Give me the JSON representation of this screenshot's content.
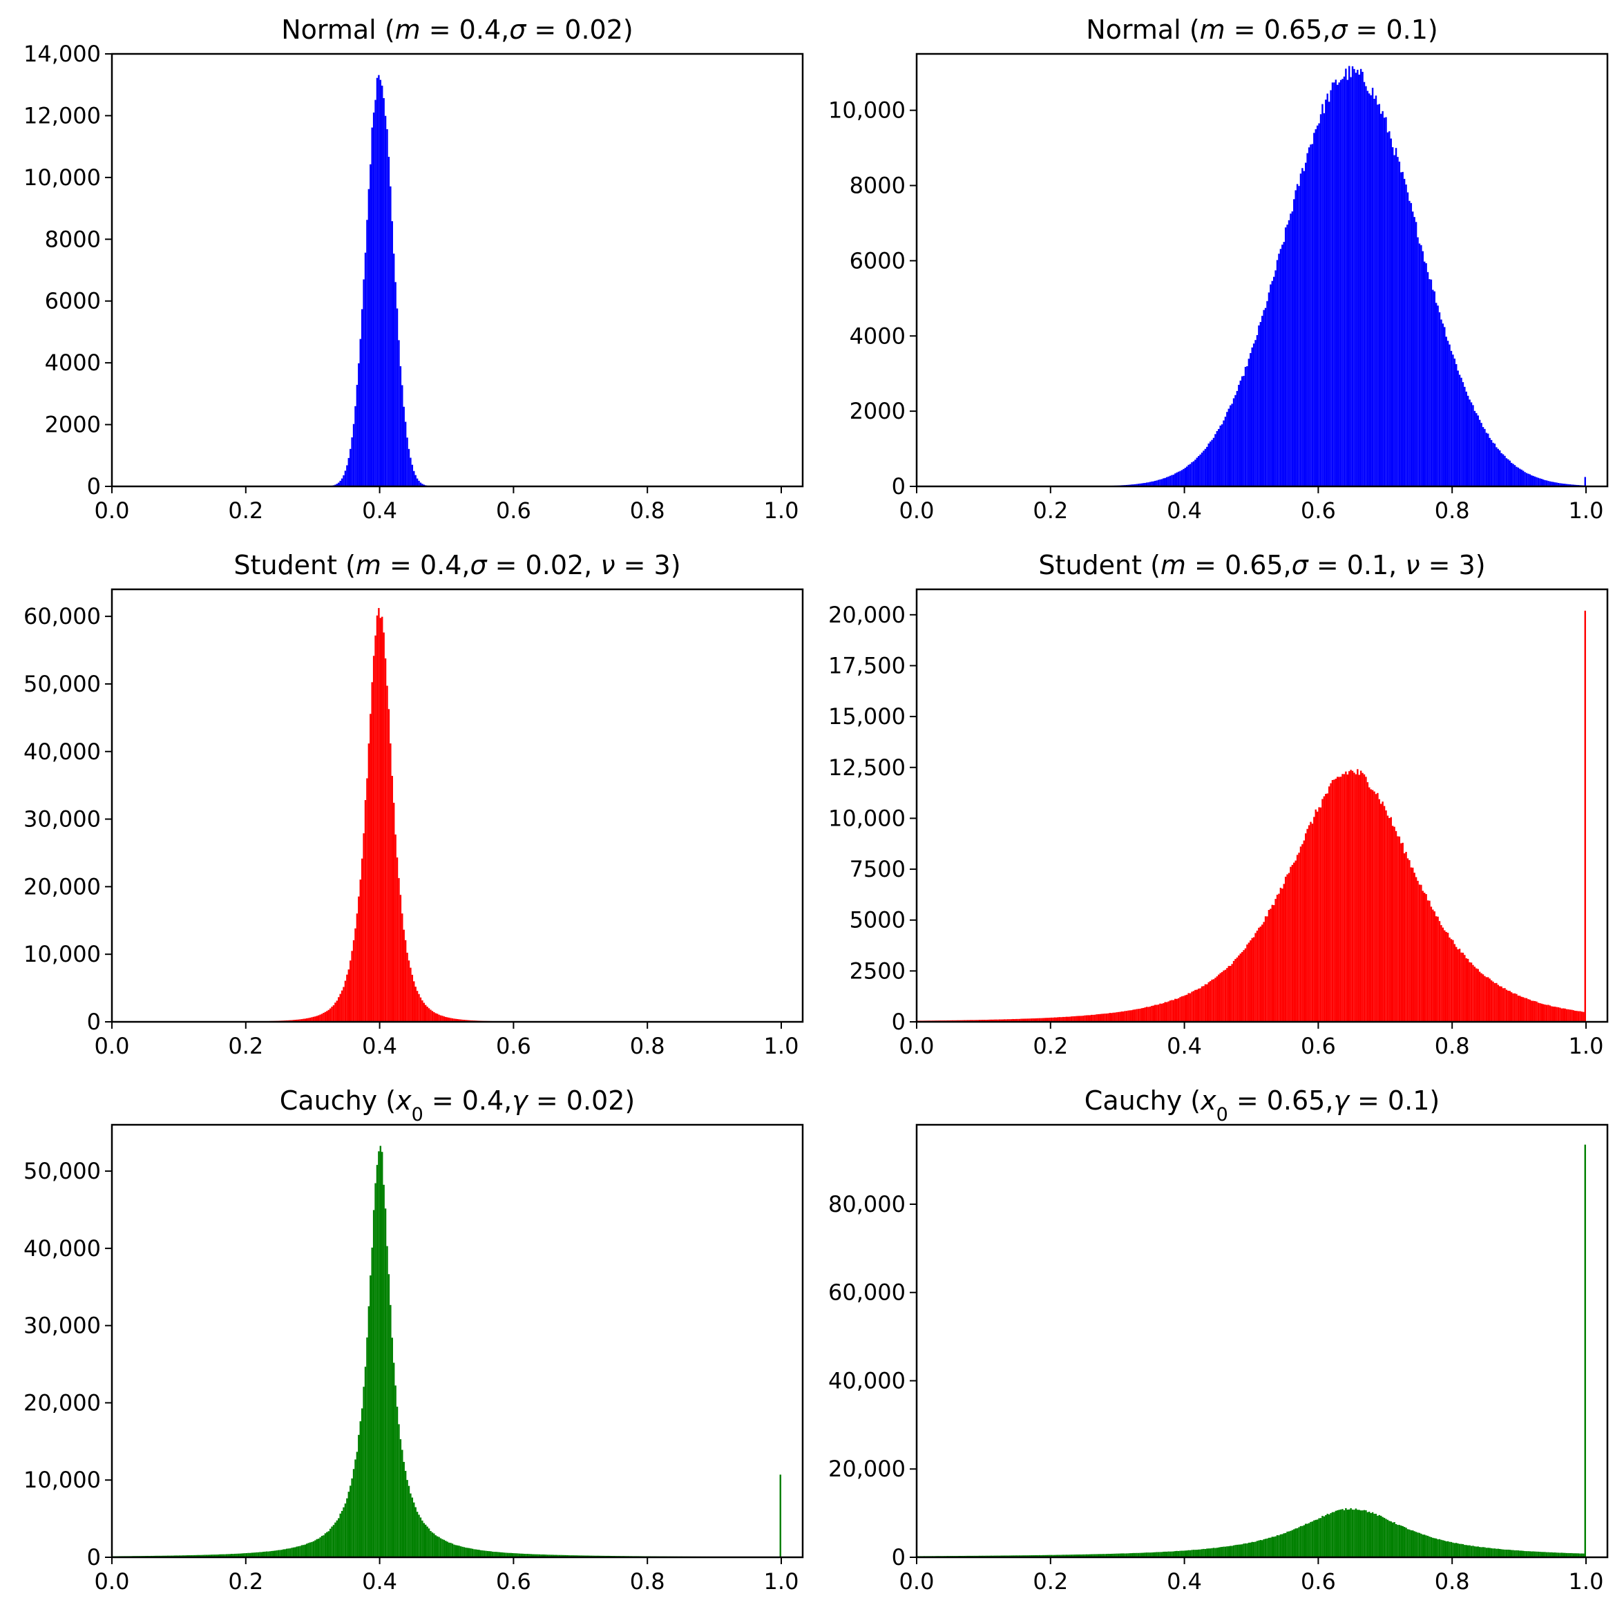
{
  "chart_data": [
    {
      "type": "bar",
      "title": "Normal (m = 0.4,σ = 0.02)",
      "title_parts": [
        {
          "t": "Normal ("
        },
        {
          "t": "m",
          "i": true
        },
        {
          "t": " = 0.4,"
        },
        {
          "t": "σ",
          "i": true
        },
        {
          "t": " = 0.02)"
        }
      ],
      "color": "#0000ff",
      "distribution": "normal",
      "params": {
        "loc": 0.4,
        "scale": 0.02
      },
      "peak": 13400,
      "bins": 400,
      "xlim": [
        0.0,
        1.0
      ],
      "ylim": [
        0,
        14000
      ],
      "xticks": [
        0.0,
        0.2,
        0.4,
        0.6,
        0.8,
        1.0
      ],
      "xtick_labels": [
        "0.0",
        "0.2",
        "0.4",
        "0.6",
        "0.8",
        "1.0"
      ],
      "yticks": [
        0,
        2000,
        4000,
        6000,
        8000,
        10000,
        12000,
        14000
      ],
      "ytick_labels": [
        "0",
        "2000",
        "4000",
        "6000",
        "8000",
        "10,000",
        "12,000",
        "14,000"
      ]
    },
    {
      "type": "bar",
      "title": "Normal (m = 0.65,σ = 0.1)",
      "title_parts": [
        {
          "t": "Normal ("
        },
        {
          "t": "m",
          "i": true
        },
        {
          "t": " = 0.65,"
        },
        {
          "t": "σ",
          "i": true
        },
        {
          "t": " = 0.1)"
        }
      ],
      "color": "#0000ff",
      "distribution": "normal",
      "params": {
        "loc": 0.65,
        "scale": 0.1
      },
      "peak": 11000,
      "end_spike": 250,
      "bins": 400,
      "xlim": [
        0.0,
        1.0
      ],
      "ylim": [
        0,
        11500
      ],
      "xticks": [
        0.0,
        0.2,
        0.4,
        0.6,
        0.8,
        1.0
      ],
      "xtick_labels": [
        "0.0",
        "0.2",
        "0.4",
        "0.6",
        "0.8",
        "1.0"
      ],
      "yticks": [
        0,
        2000,
        4000,
        6000,
        8000,
        10000
      ],
      "ytick_labels": [
        "0",
        "2000",
        "4000",
        "6000",
        "8000",
        "10,000"
      ]
    },
    {
      "type": "bar",
      "title": "Student (m = 0.4,σ = 0.02, ν = 3)",
      "title_parts": [
        {
          "t": "Student ("
        },
        {
          "t": "m",
          "i": true
        },
        {
          "t": " = 0.4,"
        },
        {
          "t": "σ",
          "i": true
        },
        {
          "t": " = 0.02, "
        },
        {
          "t": "ν",
          "i": true
        },
        {
          "t": " = 3)"
        }
      ],
      "color": "#ff0000",
      "distribution": "student",
      "params": {
        "loc": 0.4,
        "scale": 0.02,
        "df": 3
      },
      "peak": 61000,
      "bins": 400,
      "xlim": [
        0.0,
        1.0
      ],
      "ylim": [
        0,
        64000
      ],
      "xticks": [
        0.0,
        0.2,
        0.4,
        0.6,
        0.8,
        1.0
      ],
      "xtick_labels": [
        "0.0",
        "0.2",
        "0.4",
        "0.6",
        "0.8",
        "1.0"
      ],
      "yticks": [
        0,
        10000,
        20000,
        30000,
        40000,
        50000,
        60000
      ],
      "ytick_labels": [
        "0",
        "10,000",
        "20,000",
        "30,000",
        "40,000",
        "50,000",
        "60,000"
      ]
    },
    {
      "type": "bar",
      "title": "Student (m = 0.65,σ = 0.1, ν = 3)",
      "title_parts": [
        {
          "t": "Student ("
        },
        {
          "t": "m",
          "i": true
        },
        {
          "t": " = 0.65,"
        },
        {
          "t": "σ",
          "i": true
        },
        {
          "t": " = 0.1, "
        },
        {
          "t": "ν",
          "i": true
        },
        {
          "t": " = 3)"
        }
      ],
      "color": "#ff0000",
      "distribution": "student",
      "params": {
        "loc": 0.65,
        "scale": 0.1,
        "df": 3
      },
      "peak": 12300,
      "end_spike": 20200,
      "bins": 400,
      "xlim": [
        0.0,
        1.0
      ],
      "ylim": [
        0,
        21250
      ],
      "xticks": [
        0.0,
        0.2,
        0.4,
        0.6,
        0.8,
        1.0
      ],
      "xtick_labels": [
        "0.0",
        "0.2",
        "0.4",
        "0.6",
        "0.8",
        "1.0"
      ],
      "yticks": [
        0,
        2500,
        5000,
        7500,
        10000,
        12500,
        15000,
        17500,
        20000
      ],
      "ytick_labels": [
        "0",
        "2500",
        "5000",
        "7500",
        "10,000",
        "12,500",
        "15,000",
        "17,500",
        "20,000"
      ]
    },
    {
      "type": "bar",
      "title": "Cauchy (x0 = 0.4,γ = 0.02)",
      "title_parts": [
        {
          "t": "Cauchy ("
        },
        {
          "t": "x",
          "i": true
        },
        {
          "t": "0",
          "sub": true
        },
        {
          "t": " = 0.4,"
        },
        {
          "t": "γ",
          "i": true
        },
        {
          "t": " = 0.02)"
        }
      ],
      "color": "#008000",
      "distribution": "cauchy",
      "params": {
        "loc": 0.4,
        "scale": 0.02
      },
      "peak": 53500,
      "end_spike": 10700,
      "bins": 400,
      "xlim": [
        0.0,
        1.0
      ],
      "ylim": [
        0,
        56000
      ],
      "xticks": [
        0.0,
        0.2,
        0.4,
        0.6,
        0.8,
        1.0
      ],
      "xtick_labels": [
        "0.0",
        "0.2",
        "0.4",
        "0.6",
        "0.8",
        "1.0"
      ],
      "yticks": [
        0,
        10000,
        20000,
        30000,
        40000,
        50000
      ],
      "ytick_labels": [
        "0",
        "10,000",
        "20,000",
        "30,000",
        "40,000",
        "50,000"
      ]
    },
    {
      "type": "bar",
      "title": "Cauchy (x0 = 0.65,γ = 0.1)",
      "title_parts": [
        {
          "t": "Cauchy ("
        },
        {
          "t": "x",
          "i": true
        },
        {
          "t": "0",
          "sub": true
        },
        {
          "t": " = 0.65,"
        },
        {
          "t": "γ",
          "i": true
        },
        {
          "t": " = 0.1)"
        }
      ],
      "color": "#008000",
      "distribution": "cauchy",
      "params": {
        "loc": 0.65,
        "scale": 0.1
      },
      "peak": 11000,
      "end_spike": 93500,
      "bins": 400,
      "xlim": [
        0.0,
        1.0
      ],
      "ylim": [
        0,
        98000
      ],
      "xticks": [
        0.0,
        0.2,
        0.4,
        0.6,
        0.8,
        1.0
      ],
      "xtick_labels": [
        "0.0",
        "0.2",
        "0.4",
        "0.6",
        "0.8",
        "1.0"
      ],
      "yticks": [
        0,
        20000,
        40000,
        60000,
        80000
      ],
      "ytick_labels": [
        "0",
        "20,000",
        "40,000",
        "60,000",
        "80,000"
      ]
    }
  ]
}
